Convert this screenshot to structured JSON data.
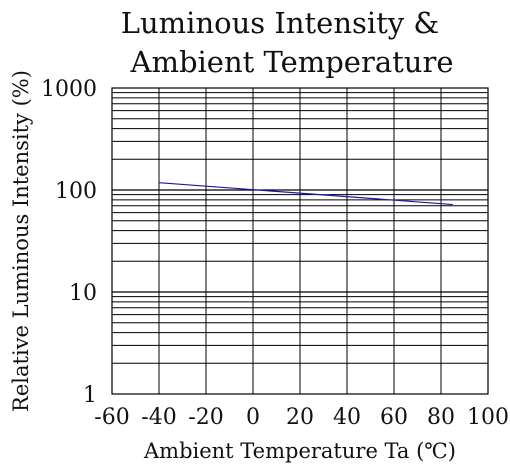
{
  "chart_data": {
    "type": "line",
    "title_lines": [
      "Luminous Intensity &",
      "Ambient Temperature"
    ],
    "xlabel": "Ambient Temperature Ta (℃)",
    "ylabel": "Relative Luminous Intensity (%)",
    "x_ticks": [
      "-60",
      "-40",
      "-20",
      "0",
      "20",
      "40",
      "60",
      "80",
      "100"
    ],
    "y_ticks": [
      "1",
      "10",
      "100",
      "1000"
    ],
    "xlim": [
      -60,
      100
    ],
    "ylim": [
      1,
      1000
    ],
    "y_scale": "log",
    "grid": true,
    "series": [
      {
        "color": "#1a1aa6",
        "x": [
          -40,
          85
        ],
        "y": [
          118,
          72
        ]
      }
    ]
  }
}
